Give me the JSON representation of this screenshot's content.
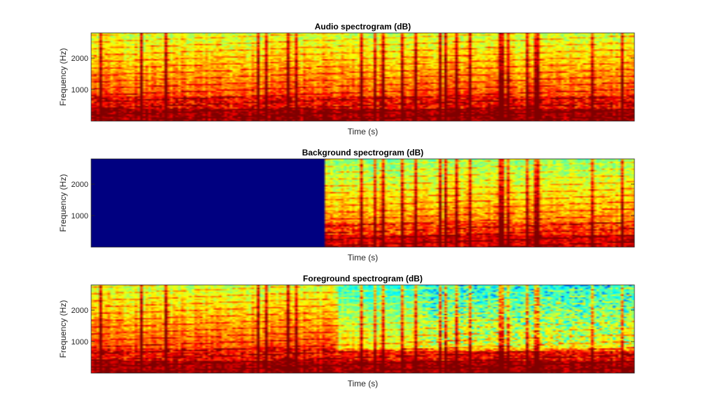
{
  "figure": {
    "background": "#ffffff"
  },
  "chart_data": [
    {
      "type": "heatmap",
      "title": "Audio spectrogram (dB)",
      "xlabel": "Time (s)",
      "ylabel": "Frequency (Hz)",
      "yticks": [
        1000,
        2000
      ],
      "ylim": [
        0,
        2800
      ],
      "colormap": "jet",
      "xtick_labels_shown": false,
      "masked_fraction": 0
    },
    {
      "type": "heatmap",
      "title": "Background spectrogram (dB)",
      "xlabel": "Time (s)",
      "ylabel": "Frequency (Hz)",
      "yticks": [
        1000,
        2000
      ],
      "ylim": [
        0,
        2800
      ],
      "colormap": "jet",
      "xtick_labels_shown": false,
      "masked_fraction": 0.43
    },
    {
      "type": "heatmap",
      "title": "Foreground spectrogram (dB)",
      "xlabel": "Time (s)",
      "ylabel": "Frequency (Hz)",
      "yticks": [
        1000,
        2000
      ],
      "ylim": [
        0,
        2800
      ],
      "colormap": "jet",
      "xtick_labels_shown": false,
      "masked_fraction": 0
    }
  ]
}
